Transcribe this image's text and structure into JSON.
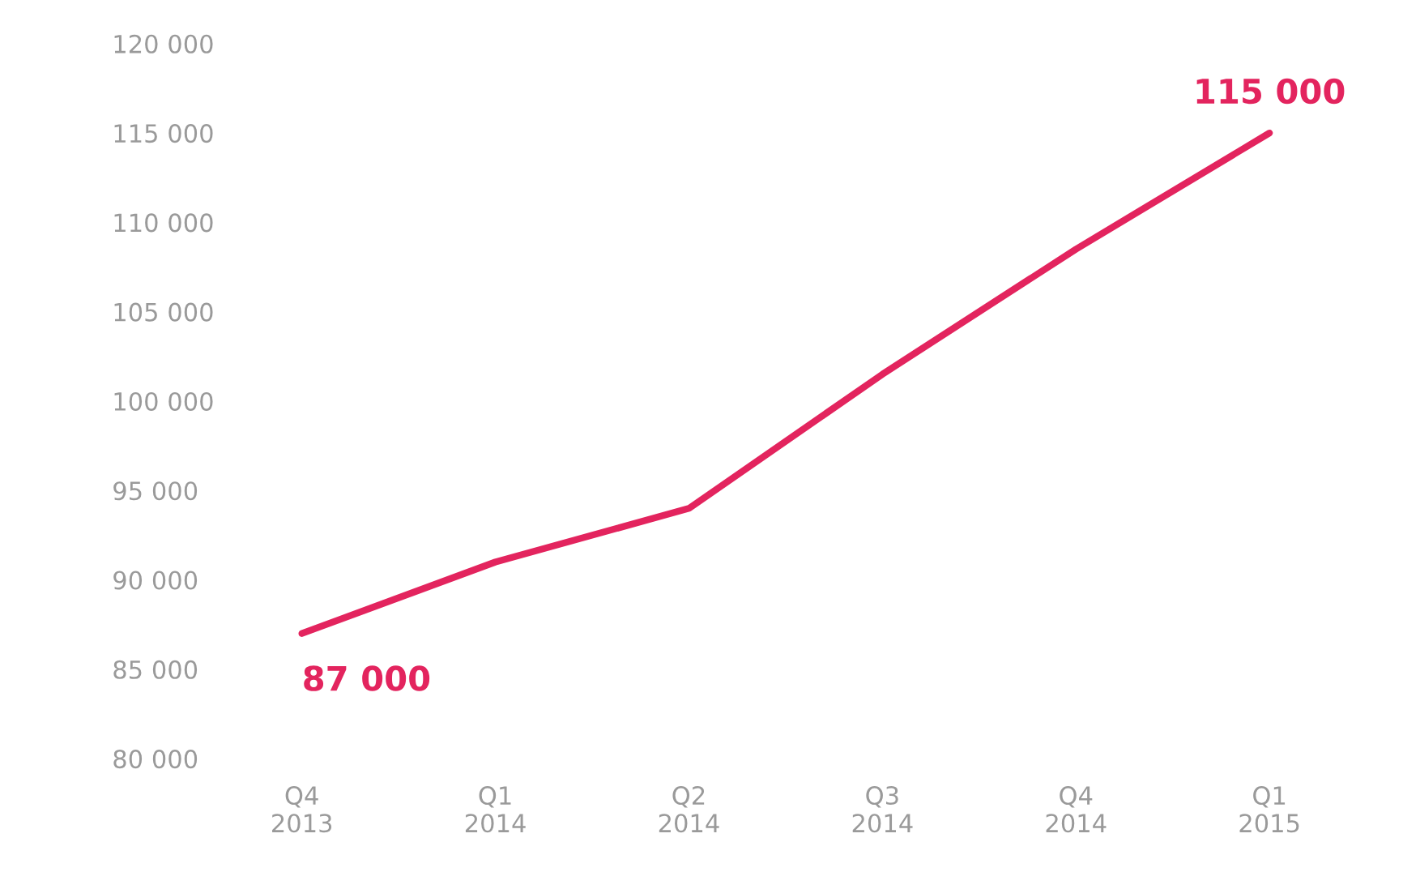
{
  "chart_data": {
    "type": "line",
    "categories": [
      "Q4\n2013",
      "Q1\n2014",
      "Q2\n2014",
      "Q3\n2014",
      "Q4\n2014",
      "Q1\n2015"
    ],
    "series": [
      {
        "color": "#e3245e",
        "values": [
          87000,
          91000,
          94000,
          101500,
          108500,
          115000
        ],
        "value_labels": [
          "87 000",
          null,
          null,
          null,
          null,
          "115 000"
        ]
      }
    ],
    "ylim": [
      80000,
      120000
    ],
    "yticks": [
      {
        "value": 80000,
        "label": "80 000"
      },
      {
        "value": 85000,
        "label": "85 000"
      },
      {
        "value": 90000,
        "label": "90 000"
      },
      {
        "value": 95000,
        "label": "95 000"
      },
      {
        "value": 100000,
        "label": "100 000"
      },
      {
        "value": 105000,
        "label": "105 000"
      },
      {
        "value": 110000,
        "label": "110 000"
      },
      {
        "value": 115000,
        "label": "115 000"
      },
      {
        "value": 120000,
        "label": "120 000"
      }
    ],
    "grid": false,
    "marker": "none",
    "line_style": "solid"
  }
}
